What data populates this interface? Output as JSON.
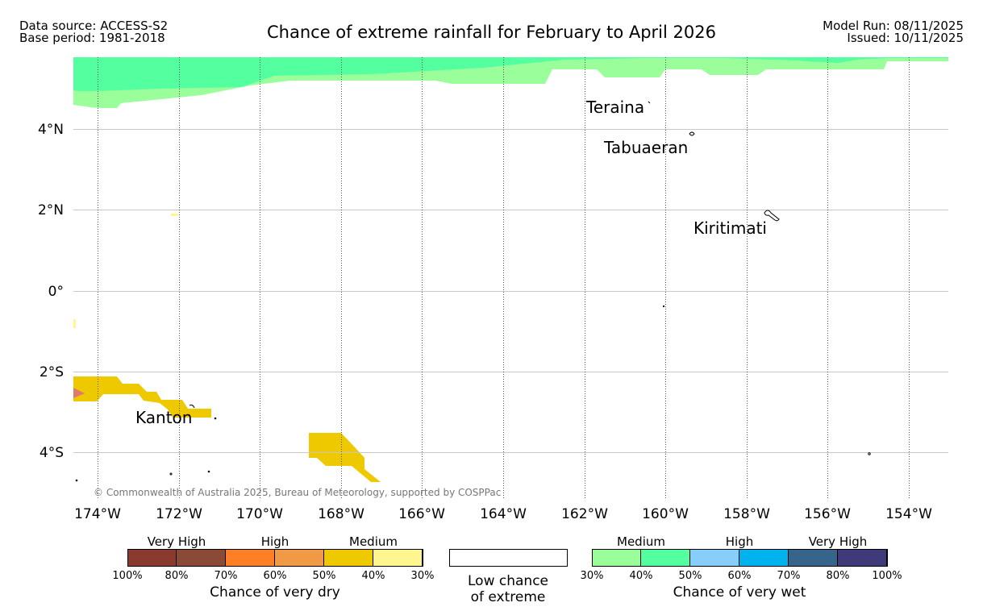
{
  "header": {
    "data_source": "Data source: ACCESS-S2",
    "base_period": "Base period: 1981-2018",
    "title": "Chance of extreme rainfall for February to April 2026",
    "model_run": "Model Run: 08/11/2025",
    "issued": "Issued: 10/11/2025"
  },
  "map": {
    "lat_labels": [
      "4°N",
      "2°N",
      "0°",
      "2°S",
      "4°S"
    ],
    "lon_labels": [
      "174°W",
      "172°W",
      "170°W",
      "168°W",
      "166°W",
      "164°W",
      "162°W",
      "160°W",
      "158°W",
      "156°W",
      "154°W"
    ],
    "places": {
      "teraina": "Teraina",
      "tabuaeran": "Tabuaeran",
      "kiritimati": "Kiritimati",
      "kanton": "Kanton"
    },
    "copyright": "© Commonwealth of Australia 2025, Bureau of Meteorology, supported by COSPPac"
  },
  "legend": {
    "dry": {
      "title": "Chance of very dry",
      "categories": [
        "Very High",
        "High",
        "Medium"
      ],
      "colors": [
        "#8b3a2f",
        "#8b4a36",
        "#ff7f24",
        "#f09a45",
        "#eec900",
        "#fff68f"
      ],
      "ticks": [
        "100%",
        "80%",
        "70%",
        "60%",
        "50%",
        "40%",
        "30%"
      ]
    },
    "low": {
      "line1": "Low chance",
      "line2": "of extreme"
    },
    "wet": {
      "title": "Chance of very wet",
      "categories": [
        "Medium",
        "High",
        "Very High"
      ],
      "colors": [
        "#9aff9a",
        "#54ff9f",
        "#87cefa",
        "#00b2ee",
        "#36648b",
        "#3f3b7a"
      ],
      "ticks": [
        "30%",
        "40%",
        "50%",
        "60%",
        "70%",
        "80%",
        "100%"
      ]
    }
  }
}
